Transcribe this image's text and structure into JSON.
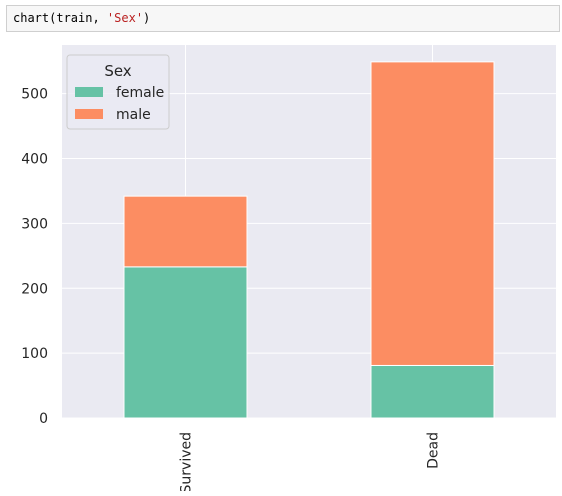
{
  "code_cell": {
    "prefix": "chart(train, ",
    "argument": "'Sex'",
    "suffix": ")"
  },
  "colors": {
    "female": "#66c2a5",
    "male": "#fc8d62",
    "plot_background": "#eaeaf2",
    "grid": "#ffffff",
    "legend_background": "#eaeaf2",
    "legend_border": "#cccccc"
  },
  "chart_data": {
    "type": "bar",
    "stacked": true,
    "categories": [
      "Survived",
      "Dead"
    ],
    "series": [
      {
        "name": "female",
        "values": [
          233,
          81
        ]
      },
      {
        "name": "male",
        "values": [
          109,
          468
        ]
      }
    ],
    "title": "",
    "xlabel": "",
    "ylabel": "",
    "ylim": [
      0,
      575
    ],
    "yticks": [
      0,
      100,
      200,
      300,
      400,
      500
    ],
    "grid": true,
    "legend": {
      "title": "Sex",
      "placement": "upper-left"
    },
    "xtick_rotation": "vertical"
  }
}
